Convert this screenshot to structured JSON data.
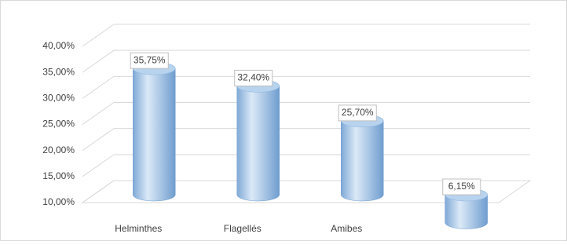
{
  "chart_data": {
    "type": "cylinder",
    "categories": [
      "Helminthes",
      "Flagellés",
      "Amibes",
      null
    ],
    "values": [
      35.75,
      32.4,
      25.7,
      6.15
    ],
    "value_labels": [
      "35,75%",
      "32,40%",
      "25,70%",
      "6,15%"
    ],
    "color": "#9dc3e6",
    "ylim": [
      10,
      40
    ],
    "yticks": [
      {
        "value": 10,
        "label": "10,00%"
      },
      {
        "value": 15,
        "label": "15,00%"
      },
      {
        "value": 20,
        "label": "20,00%"
      },
      {
        "value": 25,
        "label": "25,00%"
      },
      {
        "value": 30,
        "label": "30,00%"
      },
      {
        "value": 35,
        "label": "35,00%"
      },
      {
        "value": 40,
        "label": "40,00%"
      }
    ],
    "grid": true
  }
}
